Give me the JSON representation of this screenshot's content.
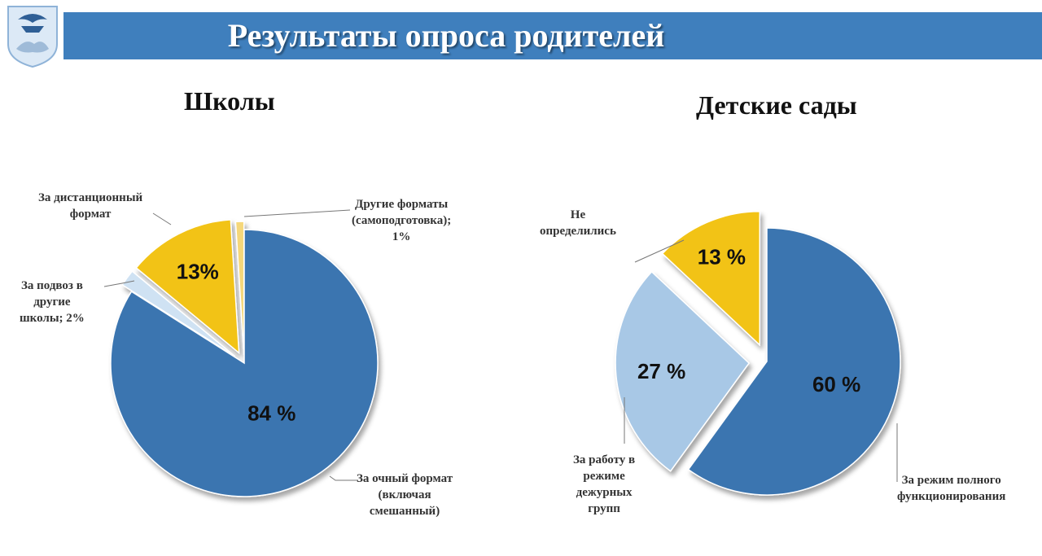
{
  "header": {
    "title": "Результаты опроса родителей"
  },
  "colors": {
    "banner": "#3f7fbd",
    "dark_blue": "#3a74b0",
    "light_blue": "#a8c8e6",
    "yellow": "#f2c316",
    "pale_blue": "#cfe2f3",
    "pale_yellow": "#f5d77a"
  },
  "chart_data": [
    {
      "type": "pie",
      "title": "Школы",
      "slices": [
        {
          "label": "За очный формат (включая смешанный)",
          "value": 84,
          "value_label": "84 %",
          "color": "#3a74b0"
        },
        {
          "label": "За подвоз в другие школы; 2%",
          "value": 2,
          "value_label": "",
          "color": "#cfe2f3"
        },
        {
          "label": "За дистанционный формат",
          "value": 13,
          "value_label": "13%",
          "color": "#f2c316"
        },
        {
          "label": "Другие форматы (самоподготовка); 1%",
          "value": 1,
          "value_label": "",
          "color": "#f5d77a"
        }
      ]
    },
    {
      "type": "pie",
      "title": "Детские сады",
      "slices": [
        {
          "label": "За режим полного функционирования",
          "value": 60,
          "value_label": "60 %",
          "color": "#3a74b0"
        },
        {
          "label": "За работу в режиме дежурных групп",
          "value": 27,
          "value_label": "27 %",
          "color": "#a8c8e6"
        },
        {
          "label": "Не определились",
          "value": 13,
          "value_label": "13 %",
          "color": "#f2c316"
        }
      ]
    }
  ],
  "labels": {
    "school_fulltime": [
      "За очный формат",
      "(включая",
      "смешанный)"
    ],
    "school_transport": [
      "За подвоз в",
      "другие",
      "школы; 2%"
    ],
    "school_remote": [
      "За дистанционный",
      "формат"
    ],
    "school_other": [
      "Другие форматы",
      "(самоподготовка);",
      "1%"
    ],
    "kg_full": [
      "За режим полного",
      "функционирования"
    ],
    "kg_duty": [
      "За работу в",
      "режиме",
      "дежурных",
      "групп"
    ],
    "kg_undecided": [
      "Не",
      "определились"
    ]
  }
}
